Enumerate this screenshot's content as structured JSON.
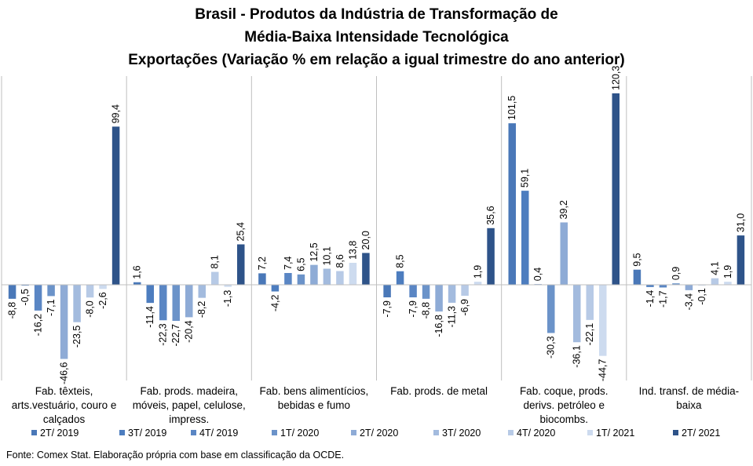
{
  "title": {
    "line1": "Brasil - Produtos da Indústria de Transformação de",
    "line2": "Média-Baixa Intensidade Tecnológica",
    "line3": "Exportações (Variação % em relação a igual trimestre do ano anterior)"
  },
  "source": "Fonte: Comex Stat. Elaboração própria com base em classificação da OCDE.",
  "chart_data": {
    "type": "bar",
    "categories": [
      "Fab. têxteis, arts.vestuário, couro e calçados",
      "Fab. prods. madeira, móveis, papel, celulose, impress.",
      "Fab. bens alimentícios, bebidas e fumo",
      "Fab. prods. de metal",
      "Fab. coque, prods. derivs. petróleo e biocombs.",
      "Ind. transf. de média-baixa"
    ],
    "series": [
      {
        "name": "2T/ 2019",
        "color": "#4A78B8",
        "values": [
          -8.8,
          1.6,
          7.2,
          -7.9,
          101.5,
          9.5
        ]
      },
      {
        "name": "3T/ 2019",
        "color": "#4D7DBF",
        "values": [
          -0.5,
          -11.4,
          -4.2,
          8.5,
          59.1,
          -1.4
        ]
      },
      {
        "name": "4T/ 2019",
        "color": "#5A86C4",
        "values": [
          -16.2,
          -22.3,
          7.4,
          -7.9,
          0.4,
          -1.7
        ]
      },
      {
        "name": "1T/ 2020",
        "color": "#6B93C9",
        "values": [
          -7.1,
          -22.7,
          6.5,
          -8.8,
          -30.3,
          0.9
        ]
      },
      {
        "name": "2T/ 2020",
        "color": "#8EABD6",
        "values": [
          -46.6,
          -20.4,
          12.5,
          -16.8,
          39.2,
          -3.4
        ]
      },
      {
        "name": "3T/ 2020",
        "color": "#A3BBDE",
        "values": [
          -23.5,
          -8.2,
          10.1,
          -11.3,
          -36.1,
          -0.1
        ]
      },
      {
        "name": "4T/ 2020",
        "color": "#B7CAE6",
        "values": [
          -8.0,
          8.1,
          8.6,
          -6.9,
          -22.1,
          4.1
        ]
      },
      {
        "name": "1T/ 2021",
        "color": "#CDDBEF",
        "values": [
          -2.6,
          -1.3,
          13.8,
          1.9,
          -44.7,
          1.9
        ]
      },
      {
        "name": "2T/ 2021",
        "color": "#2E5389",
        "values": [
          99.4,
          25.4,
          20.0,
          35.6,
          120.3,
          31.0
        ]
      }
    ],
    "data_labels": [
      [
        "-8,8",
        "-0,5",
        "-16,2",
        "-7,1",
        "-46,6",
        "-23,5",
        "-8,0",
        "-2,6",
        "99,4"
      ],
      [
        "1,6",
        "-11,4",
        "-22,3",
        "-22,7",
        "-20,4",
        "-8,2",
        "8,1",
        "-1,3",
        "25,4"
      ],
      [
        "7,2",
        "-4,2",
        "7,4",
        "6,5",
        "12,5",
        "10,1",
        "8,6",
        "13,8",
        "20,0"
      ],
      [
        "-7,9",
        "8,5",
        "-7,9",
        "-8,8",
        "-16,8",
        "-11,3",
        "-6,9",
        "1,9",
        "35,6"
      ],
      [
        "101,5",
        "59,1",
        "0,4",
        "-30,3",
        "39,2",
        "-36,1",
        "-22,1",
        "-44,7",
        "120,3"
      ],
      [
        "9,5",
        "-1,4",
        "-1,7",
        "0,9",
        "-3,4",
        "-0,1",
        "4,1",
        "1,9",
        "31,0"
      ]
    ],
    "ylim": [
      -60,
      130
    ],
    "grid": false,
    "legend_position": "bottom",
    "gridline_color": "#BFBFBF"
  }
}
